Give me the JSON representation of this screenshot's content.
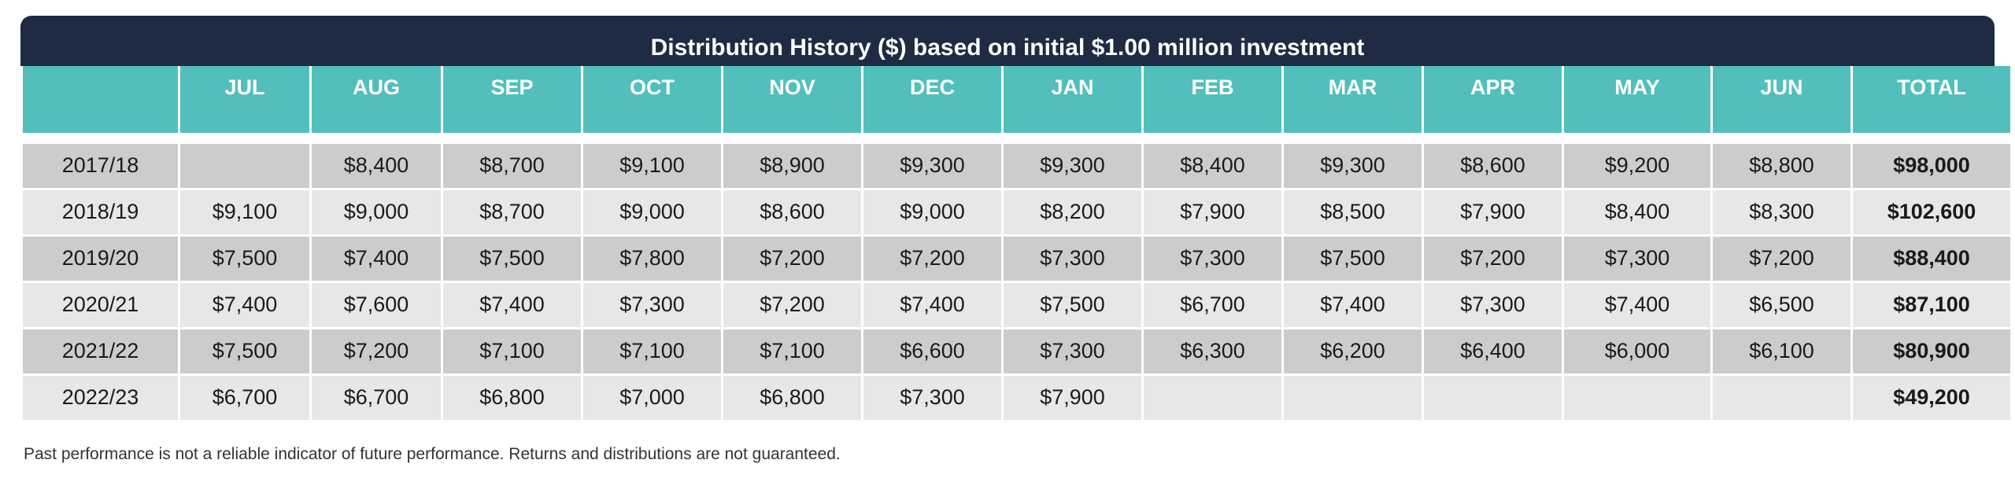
{
  "title": "Distribution History ($) based on initial $1.00 million investment",
  "columns": [
    "",
    "JUL",
    "AUG",
    "SEP",
    "OCT",
    "NOV",
    "DEC",
    "JAN",
    "FEB",
    "MAR",
    "APR",
    "MAY",
    "JUN",
    "TOTAL"
  ],
  "rows": [
    {
      "year": "2017/18",
      "values": [
        "",
        "$8,400",
        "$8,700",
        "$9,100",
        "$8,900",
        "$9,300",
        "$9,300",
        "$8,400",
        "$9,300",
        "$8,600",
        "$9,200",
        "$8,800"
      ],
      "total": "$98,000"
    },
    {
      "year": "2018/19",
      "values": [
        "$9,100",
        "$9,000",
        "$8,700",
        "$9,000",
        "$8,600",
        "$9,000",
        "$8,200",
        "$7,900",
        "$8,500",
        "$7,900",
        "$8,400",
        "$8,300"
      ],
      "total": "$102,600"
    },
    {
      "year": "2019/20",
      "values": [
        "$7,500",
        "$7,400",
        "$7,500",
        "$7,800",
        "$7,200",
        "$7,200",
        "$7,300",
        "$7,300",
        "$7,500",
        "$7,200",
        "$7,300",
        "$7,200"
      ],
      "total": "$88,400"
    },
    {
      "year": "2020/21",
      "values": [
        "$7,400",
        "$7,600",
        "$7,400",
        "$7,300",
        "$7,200",
        "$7,400",
        "$7,500",
        "$6,700",
        "$7,400",
        "$7,300",
        "$7,400",
        "$6,500"
      ],
      "total": "$87,100"
    },
    {
      "year": "2021/22",
      "values": [
        "$7,500",
        "$7,200",
        "$7,100",
        "$7,100",
        "$7,100",
        "$6,600",
        "$7,300",
        "$6,300",
        "$6,200",
        "$6,400",
        "$6,000",
        "$6,100"
      ],
      "total": "$80,900"
    },
    {
      "year": "2022/23",
      "values": [
        "$6,700",
        "$6,700",
        "$6,800",
        "$7,000",
        "$6,800",
        "$7,300",
        "$7,900",
        "",
        "",
        "",
        "",
        ""
      ],
      "total": "$49,200"
    }
  ],
  "footnote": "Past performance is not a reliable indicator of future performance. Returns and distributions are not guaranteed.",
  "colors": {
    "title_bg": "#1f2b42",
    "header_bg": "#52bfbd",
    "row_dark": "#cccccc",
    "row_light": "#e7e7e7"
  }
}
